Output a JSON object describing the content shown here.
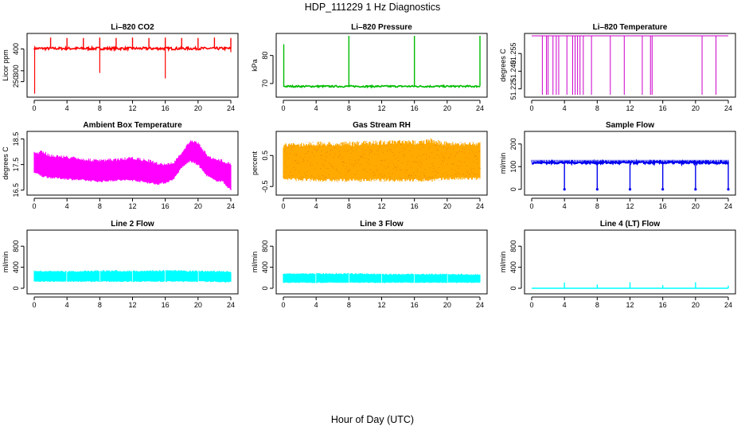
{
  "figure": {
    "title": "HDP_111229  1 Hz Diagnostics",
    "xlabel": "Hour of Day (UTC)"
  },
  "chart_data": [
    {
      "id": "co2",
      "type": "line",
      "title": "Li–820 CO2",
      "ylabel": "Licor ppm",
      "color": "#ff0000",
      "xlim": [
        0,
        24
      ],
      "x_ticks": [
        "0",
        "4",
        "8",
        "12",
        "16",
        "20",
        "24"
      ],
      "ylim": [
        190,
        460
      ],
      "y_ticks": [
        {
          "v": 250,
          "l": "250"
        },
        {
          "v": 300,
          "l": "300"
        },
        {
          "v": 400,
          "l": "400"
        }
      ],
      "series": {
        "baseline": 402,
        "noise": 6,
        "spikes": [
          {
            "x": 2,
            "y": 452
          },
          {
            "x": 4,
            "y": 450
          },
          {
            "x": 6,
            "y": 450
          },
          {
            "x": 8,
            "y": 452
          },
          {
            "x": 10,
            "y": 450
          },
          {
            "x": 12,
            "y": 452
          },
          {
            "x": 14,
            "y": 450
          },
          {
            "x": 16,
            "y": 452
          },
          {
            "x": 18,
            "y": 450
          },
          {
            "x": 20,
            "y": 450
          },
          {
            "x": 22,
            "y": 452
          },
          {
            "x": 24,
            "y": 450
          }
        ],
        "dips": [
          {
            "x": 0.05,
            "y": 195
          },
          {
            "x": 8,
            "y": 290
          },
          {
            "x": 16,
            "y": 265
          },
          {
            "x": 24,
            "y": 385
          }
        ]
      }
    },
    {
      "id": "pressure",
      "type": "line",
      "title": "Li–820 Pressure",
      "ylabel": "kPa",
      "color": "#00bb00",
      "xlim": [
        0,
        24
      ],
      "x_ticks": [
        "0",
        "4",
        "8",
        "12",
        "16",
        "20",
        "24"
      ],
      "ylim": [
        66,
        87
      ],
      "y_ticks": [
        {
          "v": 70,
          "l": "70"
        },
        {
          "v": 80,
          "l": "80"
        }
      ],
      "series": {
        "baseline": 69.0,
        "noise": 0.3,
        "spikes": [
          {
            "x": 0.05,
            "y": 84
          },
          {
            "x": 8,
            "y": 87
          },
          {
            "x": 16,
            "y": 87
          },
          {
            "x": 24,
            "y": 87
          }
        ]
      }
    },
    {
      "id": "temperature",
      "type": "line",
      "title": "Li–820 Temperature",
      "ylabel": "degrees C",
      "color": "#cc00cc",
      "xlim": [
        0,
        24
      ],
      "x_ticks": [
        "0",
        "4",
        "8",
        "12",
        "16",
        "20",
        "24"
      ],
      "ylim": [
        51.22,
        51.27
      ],
      "y_ticks": [
        {
          "v": 51.225,
          "l": "51.225"
        },
        {
          "v": 51.24,
          "l": "51.240"
        },
        {
          "v": 51.255,
          "l": "51.255"
        }
      ],
      "series": {
        "baseline": 51.27,
        "low": 51.22,
        "drops": [
          1.3,
          1.8,
          2.0,
          2.6,
          3.0,
          3.3,
          4.3,
          5.0,
          5.3,
          5.6,
          5.9,
          6.3,
          7.3,
          9.6,
          11.3,
          13.5,
          14.5,
          14.7,
          20.8,
          22.5
        ]
      }
    },
    {
      "id": "boxtemp",
      "type": "band",
      "title": "Ambient Box Temperature",
      "ylabel": "degrees C",
      "color": "#ff00ff",
      "xlim": [
        0,
        24
      ],
      "x_ticks": [
        "0",
        "4",
        "8",
        "12",
        "16",
        "20",
        "24"
      ],
      "ylim": [
        16.4,
        18.7
      ],
      "y_ticks": [
        {
          "v": 16.5,
          "l": "16.5"
        },
        {
          "v": 17.5,
          "l": "17.5"
        },
        {
          "v": 18.5,
          "l": "18.5"
        }
      ],
      "series": {
        "envelope_x": [
          0,
          1,
          2,
          4,
          6,
          8,
          10,
          12,
          14,
          15,
          16,
          17,
          18,
          19,
          20,
          21,
          22,
          23,
          24
        ],
        "upper": [
          18.0,
          18.05,
          17.9,
          17.85,
          17.75,
          17.7,
          17.75,
          17.8,
          17.7,
          17.6,
          17.55,
          17.6,
          18.0,
          18.45,
          18.4,
          17.95,
          17.75,
          17.7,
          17.6
        ],
        "lower": [
          17.15,
          17.0,
          16.95,
          16.9,
          16.85,
          16.8,
          16.85,
          16.85,
          16.75,
          16.7,
          16.75,
          16.9,
          17.35,
          17.6,
          17.45,
          17.05,
          16.85,
          16.8,
          16.45
        ]
      }
    },
    {
      "id": "rh",
      "type": "band",
      "title": "Gas Stream RH",
      "ylabel": "percent",
      "color": "#ffaa00",
      "xlim": [
        0,
        24
      ],
      "x_ticks": [
        "0",
        "4",
        "8",
        "12",
        "16",
        "20",
        "24"
      ],
      "ylim": [
        -0.7,
        1.2
      ],
      "y_ticks": [
        {
          "v": -0.5,
          "l": "-0.5"
        },
        {
          "v": 0.5,
          "l": "0.5"
        }
      ],
      "series": {
        "envelope_x": [
          0,
          4,
          8,
          12,
          16,
          18,
          20,
          24
        ],
        "upper": [
          0.9,
          0.95,
          0.95,
          1.0,
          1.0,
          1.05,
          0.95,
          0.95
        ],
        "lower": [
          -0.3,
          -0.35,
          -0.35,
          -0.35,
          -0.35,
          -0.35,
          -0.3,
          -0.3
        ]
      }
    },
    {
      "id": "sampleflow",
      "type": "line",
      "title": "Sample Flow",
      "ylabel": "ml/min",
      "color": "#0000ee",
      "xlim": [
        0,
        24
      ],
      "x_ticks": [
        "0",
        "4",
        "8",
        "12",
        "16",
        "20",
        "24"
      ],
      "ylim": [
        -15,
        245
      ],
      "y_ticks": [
        {
          "v": 0,
          "l": "0"
        },
        {
          "v": 100,
          "l": "100"
        },
        {
          "v": 200,
          "l": "200"
        }
      ],
      "series": {
        "baseline": 118,
        "noise": 5,
        "drops_to": 0,
        "drop_x": [
          4,
          8,
          12,
          16,
          20,
          24
        ]
      }
    },
    {
      "id": "line2",
      "type": "band",
      "title": "Line 2 Flow",
      "ylabel": "ml/min",
      "color": "#00ffff",
      "xlim": [
        0,
        24
      ],
      "x_ticks": [
        "0",
        "4",
        "8",
        "12",
        "16",
        "20",
        "24"
      ],
      "ylim": [
        -60,
        1060
      ],
      "y_ticks": [
        {
          "v": 0,
          "l": "0"
        },
        {
          "v": 400,
          "l": "400"
        },
        {
          "v": 800,
          "l": "800"
        }
      ],
      "series": {
        "envelope_x": [
          0,
          4,
          8,
          12,
          16,
          20,
          24
        ],
        "upper": [
          340,
          330,
          350,
          340,
          350,
          340,
          330
        ],
        "lower": [
          120,
          120,
          120,
          120,
          120,
          120,
          110
        ],
        "gaps": [
          4,
          8,
          12,
          16,
          20
        ]
      }
    },
    {
      "id": "line3",
      "type": "band",
      "title": "Line 3 Flow",
      "ylabel": "ml/min",
      "color": "#00ffff",
      "xlim": [
        0,
        24
      ],
      "x_ticks": [
        "0",
        "4",
        "8",
        "12",
        "16",
        "20",
        "24"
      ],
      "ylim": [
        -60,
        1060
      ],
      "y_ticks": [
        {
          "v": 0,
          "l": "0"
        },
        {
          "v": 400,
          "l": "400"
        },
        {
          "v": 800,
          "l": "800"
        }
      ],
      "series": {
        "envelope_x": [
          0,
          4,
          8,
          12,
          16,
          20,
          24
        ],
        "upper": [
          290,
          290,
          290,
          280,
          280,
          280,
          270
        ],
        "lower": [
          100,
          100,
          100,
          100,
          100,
          100,
          100
        ],
        "gaps": [
          4,
          8,
          12,
          16,
          20
        ]
      }
    },
    {
      "id": "line4",
      "type": "line",
      "title": "Line 4 (LT) Flow",
      "ylabel": "ml/min",
      "color": "#00ffff",
      "xlim": [
        0,
        24
      ],
      "x_ticks": [
        "0",
        "4",
        "8",
        "12",
        "16",
        "20",
        "24"
      ],
      "ylim": [
        -60,
        1060
      ],
      "y_ticks": [
        {
          "v": 0,
          "l": "0"
        },
        {
          "v": 400,
          "l": "400"
        },
        {
          "v": 800,
          "l": "800"
        }
      ],
      "series": {
        "baseline": 0,
        "noise": 0,
        "spikes": [
          {
            "x": 4,
            "y": 110
          },
          {
            "x": 8,
            "y": 70
          },
          {
            "x": 12,
            "y": 115
          },
          {
            "x": 16,
            "y": 60
          },
          {
            "x": 20,
            "y": 115
          },
          {
            "x": 24,
            "y": 50
          }
        ]
      }
    }
  ]
}
